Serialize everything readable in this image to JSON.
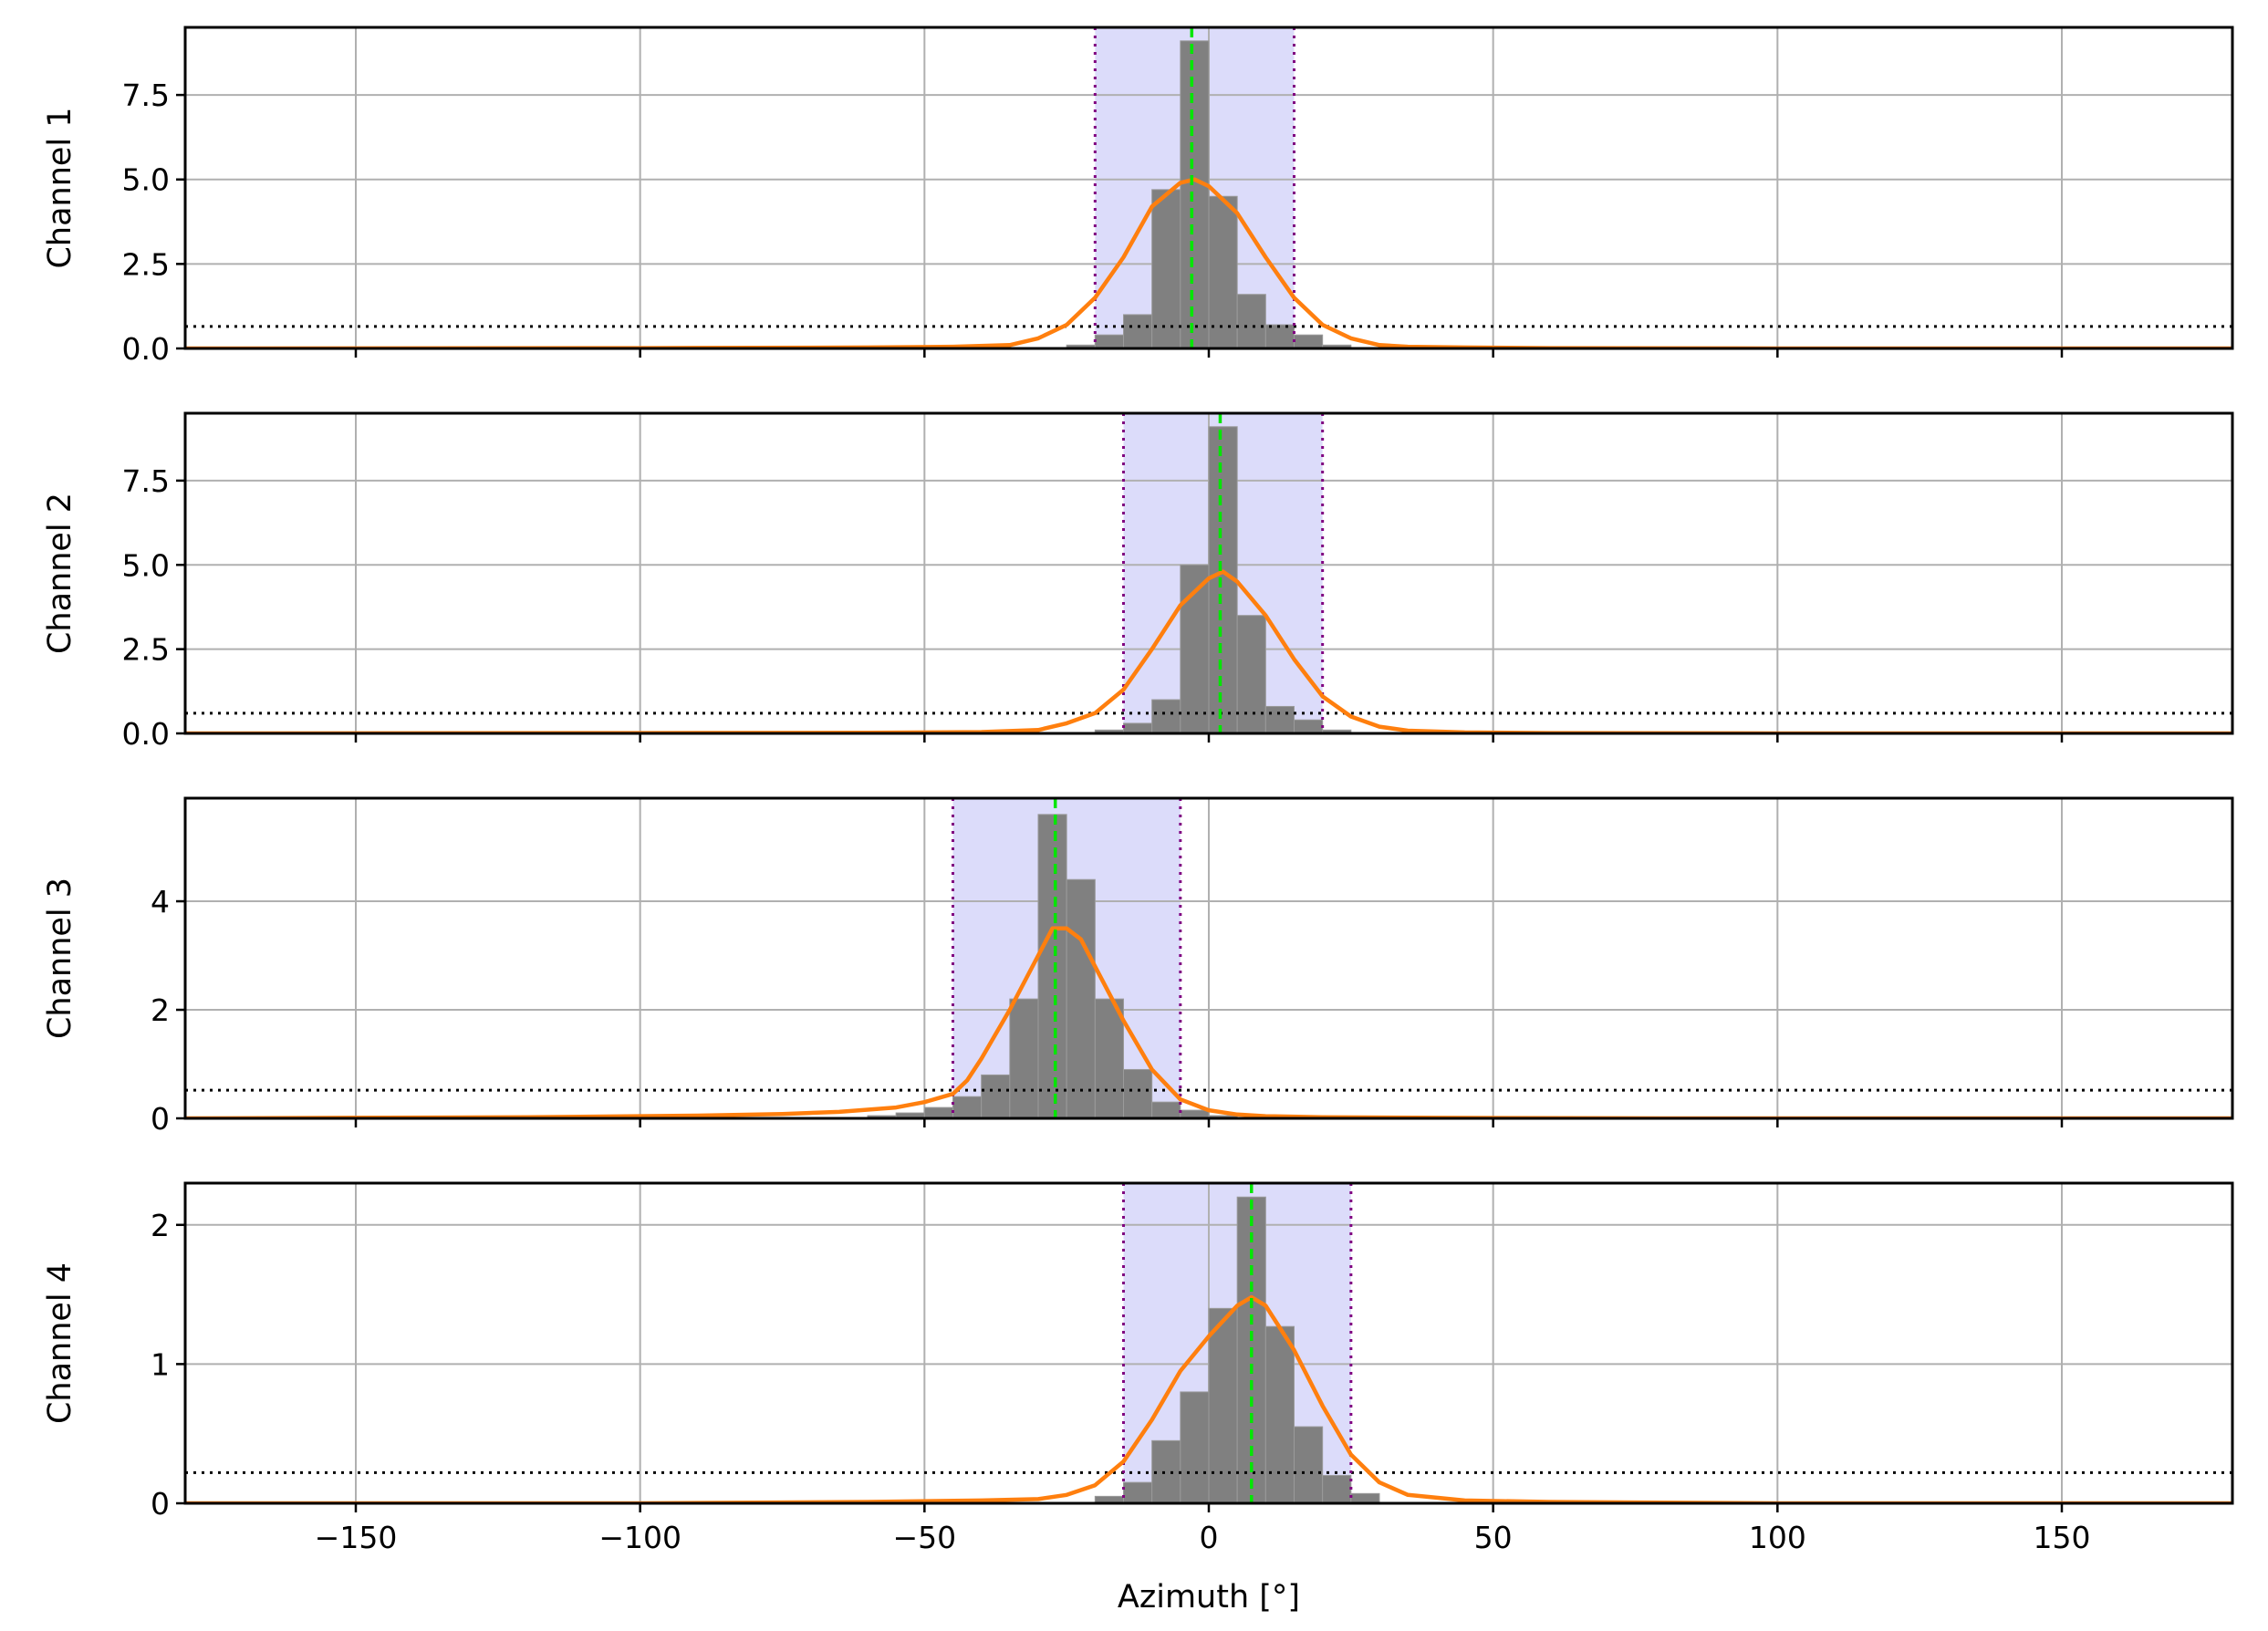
{
  "chart_data": {
    "type": "bar",
    "layout": "4 vertically stacked panels, shared x axis",
    "xlabel": "Azimuth [°]",
    "xlim": [
      -180,
      180
    ],
    "xticks": [
      -150,
      -100,
      -50,
      0,
      50,
      100,
      150
    ],
    "xtick_labels": [
      "−150",
      "−100",
      "−50",
      "0",
      "50",
      "100",
      "150"
    ],
    "grid": true,
    "bin_width": 5,
    "colors": {
      "hist": "#808080",
      "fit": "#ff7f0e",
      "peak": "#00e600",
      "bounds": "#800080",
      "band": "#dcdcfa",
      "threshold": "#000000"
    },
    "panels": [
      {
        "ylabel": "Channel 1",
        "ylim": [
          0,
          9.5
        ],
        "yticks": [
          0,
          2.5,
          5,
          7.5
        ],
        "ytick_labels": [
          "0.0",
          "2.5",
          "5.0",
          "7.5"
        ],
        "hist": {
          "bin_starts": [
            -25,
            -20,
            -15,
            -10,
            -5,
            0,
            5,
            10,
            15,
            20
          ],
          "values": [
            0.1,
            0.4,
            1.0,
            4.7,
            9.1,
            4.5,
            1.6,
            0.7,
            0.4,
            0.1
          ]
        },
        "fit": {
          "x": [
            -180,
            -100,
            -60,
            -45,
            -35,
            -30,
            -25,
            -20,
            -15,
            -10,
            -5,
            -2.5,
            0,
            5,
            10,
            15,
            20,
            25,
            30,
            35,
            45,
            60,
            100,
            180
          ],
          "y": [
            0.0,
            0.01,
            0.03,
            0.05,
            0.1,
            0.3,
            0.7,
            1.5,
            2.7,
            4.2,
            4.9,
            5.0,
            4.8,
            4.0,
            2.7,
            1.5,
            0.7,
            0.3,
            0.1,
            0.05,
            0.03,
            0.01,
            0.0,
            0.0
          ]
        },
        "peak": -3,
        "bounds": [
          -20,
          15
        ],
        "threshold": 0.65
      },
      {
        "ylabel": "Channel 2",
        "ylim": [
          0,
          9.5
        ],
        "yticks": [
          0,
          2.5,
          5,
          7.5
        ],
        "ytick_labels": [
          "0.0",
          "2.5",
          "5.0",
          "7.5"
        ],
        "hist": {
          "bin_starts": [
            -20,
            -15,
            -10,
            -5,
            0,
            5,
            10,
            15,
            20
          ],
          "values": [
            0.1,
            0.3,
            1.0,
            5.0,
            9.1,
            3.5,
            0.8,
            0.4,
            0.1
          ]
        },
        "fit": {
          "x": [
            -180,
            -100,
            -60,
            -40,
            -30,
            -25,
            -20,
            -15,
            -10,
            -5,
            0,
            2.5,
            5,
            10,
            15,
            20,
            25,
            30,
            35,
            45,
            60,
            100,
            180
          ],
          "y": [
            0.0,
            0.01,
            0.02,
            0.04,
            0.1,
            0.3,
            0.6,
            1.3,
            2.5,
            3.8,
            4.6,
            4.8,
            4.5,
            3.5,
            2.2,
            1.1,
            0.5,
            0.2,
            0.08,
            0.03,
            0.01,
            0.0,
            0.0
          ]
        },
        "peak": 2,
        "bounds": [
          -15,
          20
        ],
        "threshold": 0.6
      },
      {
        "ylabel": "Channel 3",
        "ylim": [
          0,
          5.9
        ],
        "yticks": [
          0,
          2,
          4
        ],
        "ytick_labels": [
          "0",
          "2",
          "4"
        ],
        "hist": {
          "bin_starts": [
            -60,
            -55,
            -50,
            -45,
            -40,
            -35,
            -30,
            -25,
            -20,
            -15,
            -10,
            -5,
            0
          ],
          "values": [
            0.05,
            0.1,
            0.2,
            0.4,
            0.8,
            2.2,
            5.6,
            4.4,
            2.2,
            0.9,
            0.3,
            0.15,
            0.05
          ]
        },
        "fit": {
          "x": [
            -180,
            -120,
            -90,
            -75,
            -65,
            -55,
            -50,
            -45,
            -42.5,
            -40,
            -35,
            -30,
            -27.5,
            -25,
            -22.5,
            -20,
            -15,
            -10,
            -5,
            0,
            5,
            10,
            20,
            40,
            80,
            180
          ],
          "y": [
            0.0,
            0.02,
            0.05,
            0.08,
            0.12,
            0.2,
            0.3,
            0.45,
            0.7,
            1.1,
            2.0,
            3.0,
            3.5,
            3.5,
            3.3,
            2.8,
            1.8,
            0.9,
            0.35,
            0.15,
            0.07,
            0.04,
            0.02,
            0.01,
            0.0,
            0.0
          ]
        },
        "peak": -27,
        "bounds": [
          -45,
          -5
        ],
        "threshold": 0.52
      },
      {
        "ylabel": "Channel 4",
        "ylim": [
          0,
          2.3
        ],
        "yticks": [
          0,
          1,
          2
        ],
        "ytick_labels": [
          "0",
          "1",
          "2"
        ],
        "hist": {
          "bin_starts": [
            -20,
            -15,
            -10,
            -5,
            0,
            5,
            10,
            15,
            20,
            25
          ],
          "values": [
            0.05,
            0.15,
            0.45,
            0.8,
            1.4,
            2.2,
            1.27,
            0.55,
            0.2,
            0.07
          ]
        },
        "fit": {
          "x": [
            -180,
            -100,
            -60,
            -40,
            -30,
            -25,
            -20,
            -15,
            -10,
            -5,
            0,
            5,
            7.5,
            10,
            15,
            20,
            25,
            30,
            35,
            45,
            60,
            100,
            180
          ],
          "y": [
            0.0,
            0.0,
            0.01,
            0.02,
            0.03,
            0.06,
            0.13,
            0.3,
            0.6,
            0.95,
            1.2,
            1.42,
            1.48,
            1.42,
            1.1,
            0.7,
            0.35,
            0.15,
            0.06,
            0.02,
            0.01,
            0.0,
            0.0
          ]
        },
        "peak": 7.5,
        "bounds": [
          -15,
          25
        ],
        "threshold": 0.22
      }
    ]
  }
}
